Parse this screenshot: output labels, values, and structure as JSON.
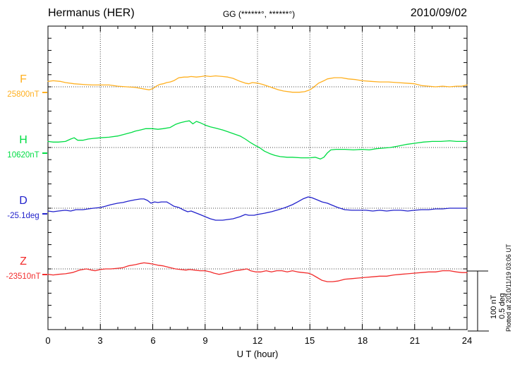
{
  "header": {
    "station": "Hermanus (HER)",
    "coords": "GG (******°, ******°)",
    "date": "2010/09/02"
  },
  "scale_bar": {
    "nt": "100 nT",
    "deg": "0.5 deg"
  },
  "footer": {
    "plotted_at": "Plotted at 2010/11/19 03:06 UT"
  },
  "chart_data": {
    "type": "line",
    "title": "Hermanus (HER) magnetogram 2010/09/02",
    "xlabel": "U T (hour)",
    "x_range_hours": [
      0,
      24
    ],
    "x_axis": {
      "label": "U T (hour)",
      "ticks": [
        "0",
        "3",
        "6",
        "9",
        "12",
        "15",
        "18",
        "21",
        "24"
      ],
      "tick_hours": [
        0,
        3,
        6,
        9,
        12,
        15,
        18,
        21,
        24
      ]
    },
    "grid": "dotted vertical every 3 h, dotted baseline per channel",
    "legend_position": "left channel labels",
    "scale": {
      "nT_per_division": 100,
      "deg_per_division": 0.5
    },
    "channels": [
      {
        "id": "F",
        "label": "F",
        "baseline_value": "25800nT",
        "unit": "nT",
        "color": "#FFB020",
        "delta_series": [
          [
            0,
            9
          ],
          [
            0.3,
            10
          ],
          [
            0.7,
            9
          ],
          [
            1,
            7
          ],
          [
            1.5,
            5
          ],
          [
            2,
            4
          ],
          [
            2.5,
            3
          ],
          [
            3,
            3
          ],
          [
            3.5,
            3
          ],
          [
            4,
            1
          ],
          [
            4.5,
            0
          ],
          [
            5,
            -1
          ],
          [
            5.4,
            -3
          ],
          [
            5.8,
            -5
          ],
          [
            6,
            -3
          ],
          [
            6.2,
            1
          ],
          [
            6.4,
            4
          ],
          [
            6.6,
            5
          ],
          [
            6.8,
            7
          ],
          [
            7,
            8
          ],
          [
            7.2,
            10
          ],
          [
            7.5,
            15
          ],
          [
            7.8,
            16
          ],
          [
            8,
            16
          ],
          [
            8.2,
            17
          ],
          [
            8.5,
            16
          ],
          [
            8.8,
            17
          ],
          [
            9,
            18
          ],
          [
            9.3,
            17
          ],
          [
            9.6,
            18
          ],
          [
            10,
            17
          ],
          [
            10.3,
            16
          ],
          [
            10.6,
            14
          ],
          [
            11,
            9
          ],
          [
            11.3,
            6
          ],
          [
            11.5,
            5
          ],
          [
            11.7,
            7
          ],
          [
            12,
            6
          ],
          [
            12.3,
            4
          ],
          [
            12.6,
            1
          ],
          [
            12.9,
            -2
          ],
          [
            13.2,
            -5
          ],
          [
            13.5,
            -7
          ],
          [
            14,
            -9
          ],
          [
            14.4,
            -9
          ],
          [
            14.7,
            -8
          ],
          [
            15,
            -5
          ],
          [
            15.2,
            -1
          ],
          [
            15.5,
            6
          ],
          [
            15.8,
            10
          ],
          [
            16,
            13
          ],
          [
            16.4,
            15
          ],
          [
            16.8,
            15
          ],
          [
            17.2,
            13
          ],
          [
            17.6,
            12
          ],
          [
            18,
            10
          ],
          [
            18.5,
            9
          ],
          [
            19,
            8
          ],
          [
            19.5,
            8
          ],
          [
            20,
            7
          ],
          [
            20.5,
            6
          ],
          [
            21,
            5
          ],
          [
            21.4,
            2
          ],
          [
            21.8,
            1
          ],
          [
            22.2,
            0
          ],
          [
            22.6,
            1
          ],
          [
            23,
            0
          ],
          [
            23.4,
            1
          ],
          [
            23.7,
            1
          ],
          [
            24,
            3
          ]
        ]
      },
      {
        "id": "H",
        "label": "H",
        "baseline_value": "10620nT",
        "unit": "nT",
        "color": "#00DD44",
        "delta_series": [
          [
            0,
            10
          ],
          [
            0.3,
            9
          ],
          [
            0.6,
            9
          ],
          [
            1,
            10
          ],
          [
            1.3,
            14
          ],
          [
            1.5,
            16
          ],
          [
            1.7,
            12
          ],
          [
            2,
            12
          ],
          [
            2.3,
            14
          ],
          [
            2.6,
            15
          ],
          [
            3,
            16
          ],
          [
            3.5,
            17
          ],
          [
            4,
            19
          ],
          [
            4.4,
            22
          ],
          [
            4.8,
            25
          ],
          [
            5,
            27
          ],
          [
            5.3,
            29
          ],
          [
            5.6,
            31
          ],
          [
            6,
            31
          ],
          [
            6.3,
            30
          ],
          [
            6.6,
            31
          ],
          [
            7,
            33
          ],
          [
            7.3,
            38
          ],
          [
            7.6,
            41
          ],
          [
            7.9,
            43
          ],
          [
            8.1,
            44
          ],
          [
            8.3,
            39
          ],
          [
            8.5,
            43
          ],
          [
            8.7,
            41
          ],
          [
            9,
            37
          ],
          [
            9.3,
            34
          ],
          [
            9.6,
            32
          ],
          [
            10,
            29
          ],
          [
            10.3,
            26
          ],
          [
            10.6,
            23
          ],
          [
            11,
            19
          ],
          [
            11.3,
            14
          ],
          [
            11.6,
            8
          ],
          [
            11.9,
            3
          ],
          [
            12.1,
            0
          ],
          [
            12.4,
            -6
          ],
          [
            12.7,
            -10
          ],
          [
            13,
            -13
          ],
          [
            13.3,
            -15
          ],
          [
            13.7,
            -16
          ],
          [
            14,
            -16
          ],
          [
            14.5,
            -17
          ],
          [
            15,
            -17
          ],
          [
            15.3,
            -16
          ],
          [
            15.6,
            -19
          ],
          [
            15.8,
            -16
          ],
          [
            16,
            -9
          ],
          [
            16.2,
            -4
          ],
          [
            16.5,
            -3
          ],
          [
            17,
            -3
          ],
          [
            17.5,
            -4
          ],
          [
            18,
            -3
          ],
          [
            18.4,
            -4
          ],
          [
            18.8,
            -2
          ],
          [
            19.2,
            -1
          ],
          [
            19.6,
            0
          ],
          [
            20,
            2
          ],
          [
            20.5,
            5
          ],
          [
            21,
            7
          ],
          [
            21.5,
            9
          ],
          [
            22,
            10
          ],
          [
            22.5,
            10
          ],
          [
            23,
            11
          ],
          [
            23.4,
            10
          ],
          [
            23.7,
            10
          ],
          [
            24,
            10
          ]
        ]
      },
      {
        "id": "D",
        "label": "D",
        "baseline_value": "-25.1deg",
        "unit": "deg",
        "color": "#2222CC",
        "delta_series": [
          [
            0,
            -0.023
          ],
          [
            0.3,
            -0.029
          ],
          [
            0.6,
            -0.023
          ],
          [
            1,
            -0.017
          ],
          [
            1.3,
            -0.023
          ],
          [
            1.6,
            -0.012
          ],
          [
            2,
            -0.012
          ],
          [
            2.3,
            -0.006
          ],
          [
            2.6,
            0
          ],
          [
            3,
            0.006
          ],
          [
            3.3,
            0.017
          ],
          [
            3.6,
            0.029
          ],
          [
            4,
            0.041
          ],
          [
            4.3,
            0.047
          ],
          [
            4.6,
            0.058
          ],
          [
            5,
            0.07
          ],
          [
            5.3,
            0.076
          ],
          [
            5.5,
            0.076
          ],
          [
            5.7,
            0.064
          ],
          [
            5.9,
            0.041
          ],
          [
            6.1,
            0.052
          ],
          [
            6.3,
            0.047
          ],
          [
            6.5,
            0.052
          ],
          [
            6.8,
            0.052
          ],
          [
            7,
            0.035
          ],
          [
            7.2,
            0.017
          ],
          [
            7.5,
            0.006
          ],
          [
            7.8,
            -0.017
          ],
          [
            8,
            -0.029
          ],
          [
            8.2,
            -0.023
          ],
          [
            8.4,
            -0.035
          ],
          [
            8.7,
            -0.052
          ],
          [
            9,
            -0.07
          ],
          [
            9.3,
            -0.087
          ],
          [
            9.6,
            -0.099
          ],
          [
            10,
            -0.099
          ],
          [
            10.3,
            -0.093
          ],
          [
            10.6,
            -0.087
          ],
          [
            11,
            -0.07
          ],
          [
            11.3,
            -0.052
          ],
          [
            11.5,
            -0.058
          ],
          [
            11.8,
            -0.058
          ],
          [
            12,
            -0.052
          ],
          [
            12.4,
            -0.041
          ],
          [
            12.8,
            -0.029
          ],
          [
            13.2,
            -0.012
          ],
          [
            13.6,
            0.006
          ],
          [
            14,
            0.029
          ],
          [
            14.3,
            0.052
          ],
          [
            14.6,
            0.076
          ],
          [
            14.9,
            0.093
          ],
          [
            15.1,
            0.087
          ],
          [
            15.4,
            0.07
          ],
          [
            15.7,
            0.052
          ],
          [
            16,
            0.041
          ],
          [
            16.3,
            0.023
          ],
          [
            16.6,
            0.006
          ],
          [
            17,
            -0.012
          ],
          [
            17.4,
            -0.017
          ],
          [
            17.8,
            -0.017
          ],
          [
            18.2,
            -0.017
          ],
          [
            18.6,
            -0.023
          ],
          [
            19,
            -0.017
          ],
          [
            19.4,
            -0.023
          ],
          [
            19.8,
            -0.017
          ],
          [
            20.2,
            -0.017
          ],
          [
            20.6,
            -0.023
          ],
          [
            21,
            -0.017
          ],
          [
            21.4,
            -0.012
          ],
          [
            21.8,
            -0.012
          ],
          [
            22.2,
            -0.006
          ],
          [
            22.6,
            -0.006
          ],
          [
            23,
            0
          ],
          [
            23.4,
            0
          ],
          [
            23.7,
            0
          ],
          [
            24,
            0
          ]
        ]
      },
      {
        "id": "Z",
        "label": "Z",
        "baseline_value": "-23510nT",
        "unit": "nT",
        "color": "#F22C2C",
        "delta_series": [
          [
            0,
            -9
          ],
          [
            0.3,
            -10
          ],
          [
            0.6,
            -9
          ],
          [
            1,
            -8
          ],
          [
            1.4,
            -6
          ],
          [
            1.8,
            -2
          ],
          [
            2,
            -1
          ],
          [
            2.2,
            0
          ],
          [
            2.5,
            -2
          ],
          [
            2.7,
            -3
          ],
          [
            3,
            -1
          ],
          [
            3.3,
            0
          ],
          [
            3.6,
            0
          ],
          [
            4,
            1
          ],
          [
            4.3,
            2
          ],
          [
            4.6,
            5
          ],
          [
            5,
            7
          ],
          [
            5.3,
            9
          ],
          [
            5.5,
            10
          ],
          [
            5.8,
            9
          ],
          [
            6,
            8
          ],
          [
            6.3,
            6
          ],
          [
            6.6,
            5
          ],
          [
            7,
            2
          ],
          [
            7.3,
            0
          ],
          [
            7.6,
            -1
          ],
          [
            7.9,
            -2
          ],
          [
            8.1,
            -1
          ],
          [
            8.4,
            -2
          ],
          [
            8.7,
            -3
          ],
          [
            9,
            -3
          ],
          [
            9.3,
            -5
          ],
          [
            9.5,
            -7
          ],
          [
            9.8,
            -9
          ],
          [
            10,
            -8
          ],
          [
            10.3,
            -6
          ],
          [
            10.7,
            -3
          ],
          [
            11,
            -2
          ],
          [
            11.2,
            -1
          ],
          [
            11.4,
            0
          ],
          [
            11.6,
            -3
          ],
          [
            11.9,
            -5
          ],
          [
            12.2,
            -5
          ],
          [
            12.5,
            -3
          ],
          [
            12.8,
            -5
          ],
          [
            13.1,
            -3
          ],
          [
            13.4,
            -3
          ],
          [
            13.7,
            -5
          ],
          [
            14,
            -3
          ],
          [
            14.3,
            -5
          ],
          [
            14.6,
            -6
          ],
          [
            14.9,
            -7
          ],
          [
            15.1,
            -9
          ],
          [
            15.4,
            -14
          ],
          [
            15.7,
            -19
          ],
          [
            16,
            -21
          ],
          [
            16.3,
            -21
          ],
          [
            16.6,
            -20
          ],
          [
            17,
            -17
          ],
          [
            17.4,
            -16
          ],
          [
            17.8,
            -15
          ],
          [
            18.2,
            -14
          ],
          [
            18.6,
            -13
          ],
          [
            19,
            -12
          ],
          [
            19.4,
            -12
          ],
          [
            19.8,
            -10
          ],
          [
            20.2,
            -9
          ],
          [
            20.6,
            -8
          ],
          [
            21,
            -7
          ],
          [
            21.4,
            -6
          ],
          [
            21.8,
            -5
          ],
          [
            22.2,
            -5
          ],
          [
            22.6,
            -3
          ],
          [
            23,
            -3
          ],
          [
            23.4,
            -5
          ],
          [
            23.7,
            -6
          ],
          [
            24,
            -6
          ]
        ]
      }
    ]
  }
}
